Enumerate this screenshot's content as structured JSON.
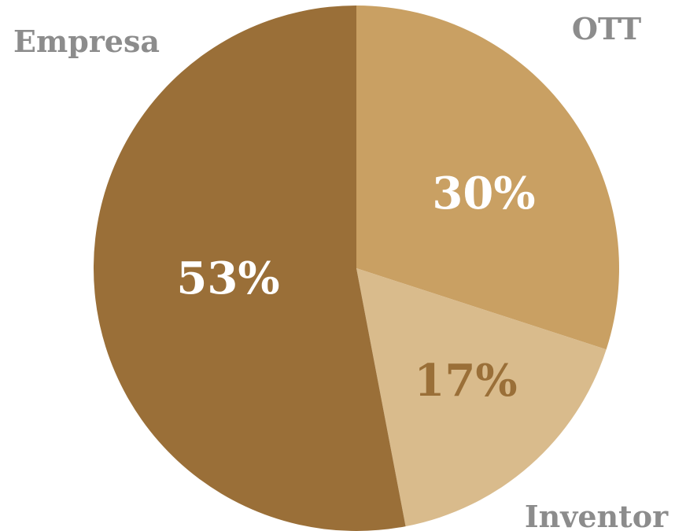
{
  "chart_data": {
    "type": "pie",
    "slices": [
      {
        "label": "OTT",
        "value": 30,
        "value_label": "30%",
        "color": "#c9a063",
        "value_label_color": "#ffffff"
      },
      {
        "label": "Inventor",
        "value": 17,
        "value_label": "17%",
        "color": "#d9bb8c",
        "value_label_color": "#9a6f38"
      },
      {
        "label": "Empresa",
        "value": 53,
        "value_label": "53%",
        "color": "#9a6f38",
        "value_label_color": "#ffffff"
      }
    ],
    "category_label_color": "#8c8c8c",
    "background": "#ffffff",
    "start": "12 o'clock",
    "direction": "clockwise"
  }
}
